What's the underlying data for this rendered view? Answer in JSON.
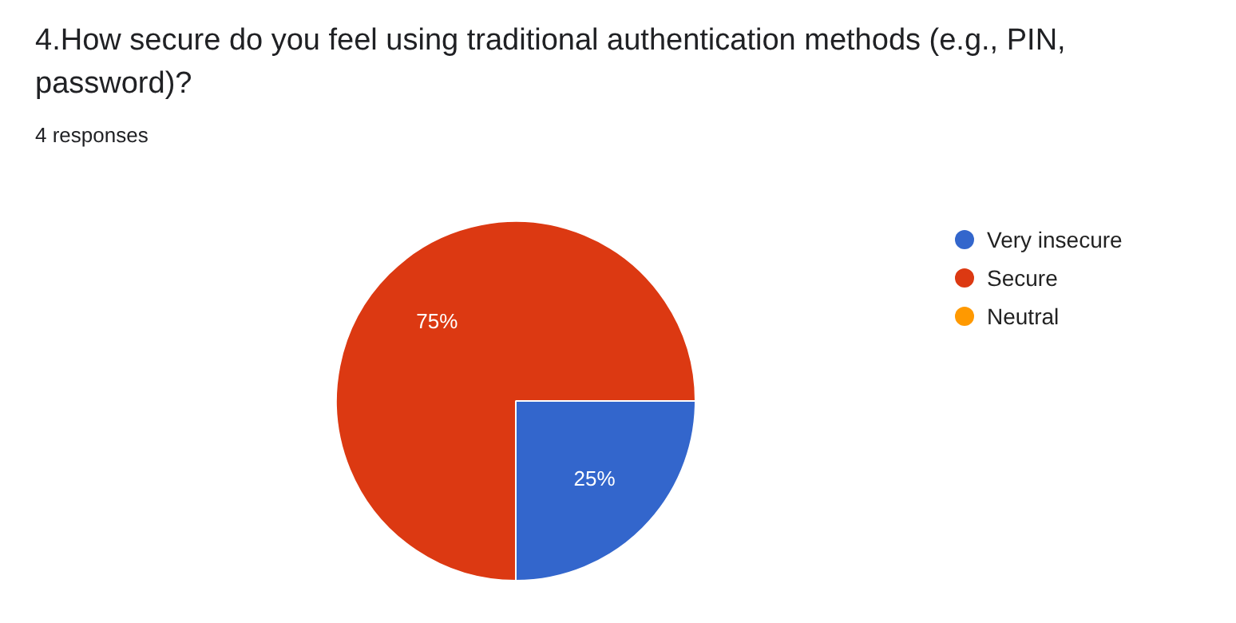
{
  "chart_data": {
    "type": "pie",
    "title": "4.How secure do you feel using traditional authentication methods (e.g., PIN, password)?",
    "subtitle": "4 responses",
    "categories": [
      "Very insecure",
      "Secure",
      "Neutral"
    ],
    "values": [
      25,
      75,
      0
    ],
    "colors": [
      "#3366cc",
      "#dc3912",
      "#ff9900"
    ],
    "value_labels": [
      "25%",
      "75%",
      null
    ],
    "legend": "top right"
  }
}
